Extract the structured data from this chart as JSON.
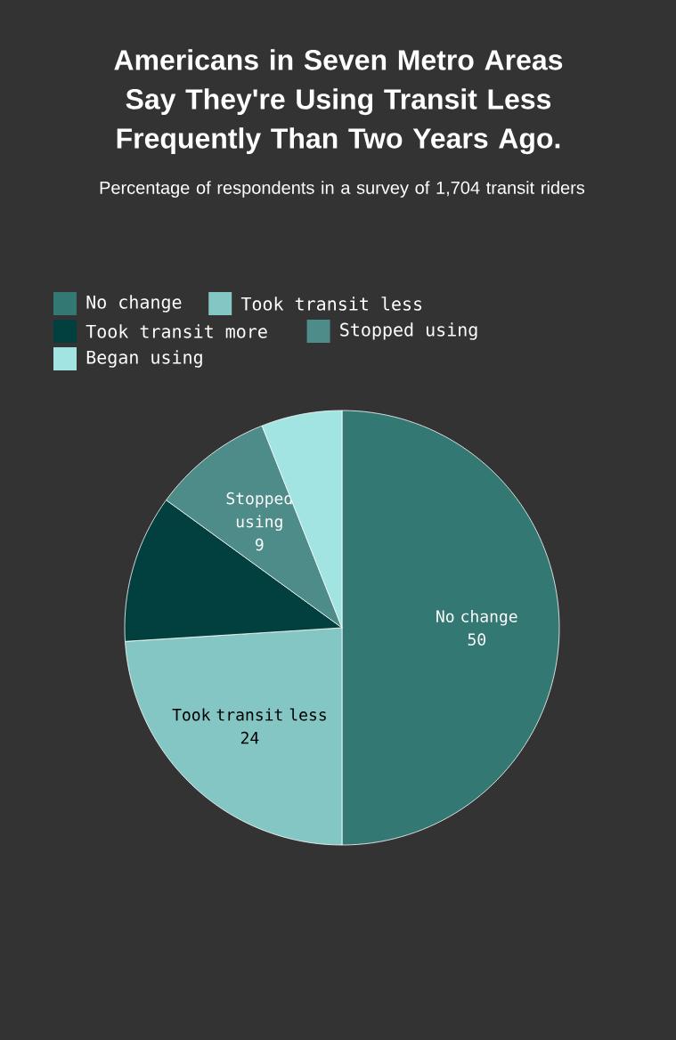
{
  "chart_data": {
    "type": "pie",
    "title": "Americans in Seven Metro Areas Say They're Using Transit Less Frequently Than Two Years Ago.",
    "subtitle": "Percentage of respondents in a survey of 1,704 transit riders",
    "categories": [
      "No change",
      "Took transit less",
      "Took transit more",
      "Stopped using",
      "Began using"
    ],
    "values": [
      50,
      24,
      11,
      9,
      6
    ],
    "colors": [
      "#337872",
      "#84c6c4",
      "#02403f",
      "#4d8c89",
      "#a2e4e1"
    ],
    "value_labels": [
      "50",
      "24",
      null,
      "9",
      null
    ],
    "legend": "top"
  }
}
